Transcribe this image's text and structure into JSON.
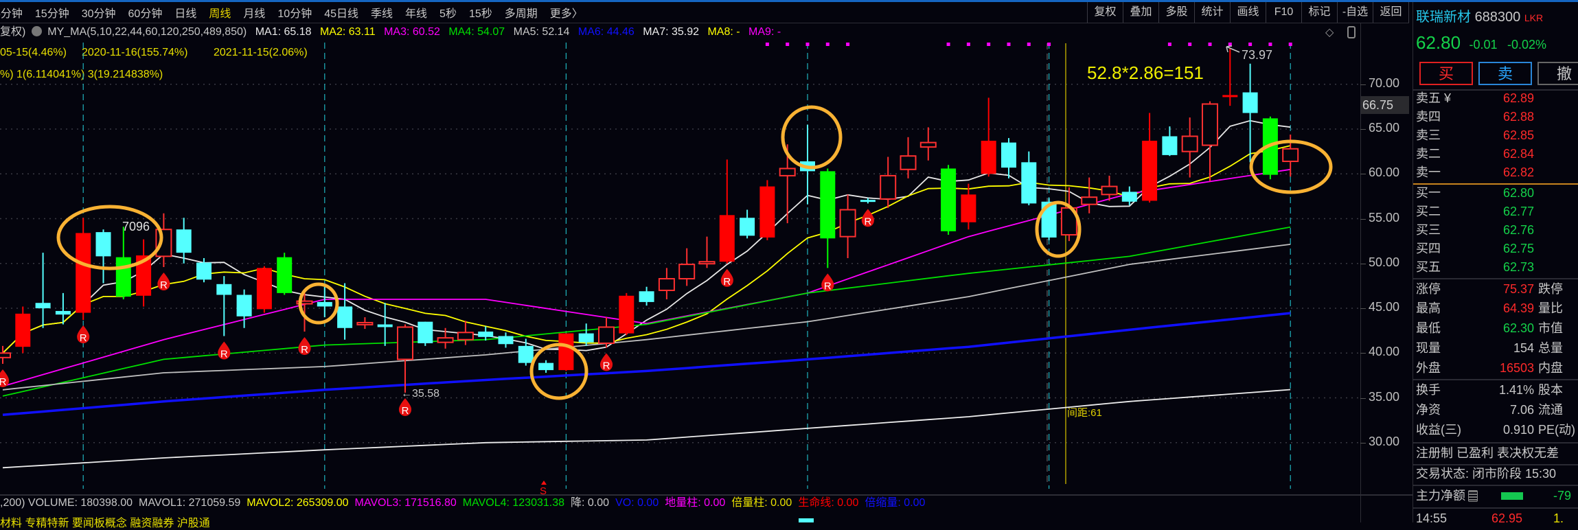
{
  "tabs": [
    "5分钟",
    "15分钟",
    "30分钟",
    "60分钟",
    "日线",
    "周线",
    "月线",
    "10分钟",
    "45日线",
    "季线",
    "年线",
    "5秒",
    "15秒",
    "多周期",
    "更多〉"
  ],
  "active_tab": "周线",
  "toolbar": [
    "复权",
    "叠加",
    "多股",
    "统计",
    "画线",
    "F10",
    "标记",
    "-自选",
    "返回"
  ],
  "ma_legend": {
    "prefix": "复权)",
    "indicator": "MY_MA(5,10,22,44,60,120,250,489,850)",
    "items": [
      {
        "label": "MA1: 65.18",
        "color": "#e8e8e8"
      },
      {
        "label": "MA2: 63.11",
        "color": "#ffff00"
      },
      {
        "label": "MA3: 60.52",
        "color": "#ff00ff"
      },
      {
        "label": "MA4: 54.07",
        "color": "#00ff00"
      },
      {
        "label": "MA5: 52.14",
        "color": "#c8c8c8"
      },
      {
        "label": "MA6: 44.46",
        "color": "#1010ff"
      },
      {
        "label": "MA7: 35.92",
        "color": "#eeeeee"
      },
      {
        "label": "MA8: -",
        "color": "#ffff00"
      },
      {
        "label": "MA9: -",
        "color": "#ff00ff"
      }
    ]
  },
  "info_line1": [
    "05-15(4.46%)",
    "2020-11-16(155.74%)",
    "2021-11-15(2.06%)"
  ],
  "info_line2": "%) 1(6.114041%) 3(19.214838%)",
  "annotations": {
    "high_label": "7096",
    "low_label": "←35.58",
    "peak_label": "73.97",
    "formula": "52.8*2.86=151",
    "spacing": "间距:61",
    "signal": "S",
    "current_price_tag": "66.75",
    "marker": "R"
  },
  "chart_data": {
    "type": "candlestick",
    "ylim": [
      24.2,
      74.7
    ],
    "y_ticks": [
      30,
      35,
      40,
      45,
      50,
      55,
      60,
      65,
      70
    ],
    "grid": true,
    "colors": {
      "up": "#ff0000",
      "down": "#54ffff",
      "big_down": "#00ff00",
      "ring": "#f9b233"
    },
    "candles": [
      [
        39.5,
        40.8,
        38.8,
        40.0,
        "rh"
      ],
      [
        40.7,
        45.2,
        40.0,
        44.4,
        "r"
      ],
      [
        45.6,
        51.2,
        42.8,
        45.0,
        "c"
      ],
      [
        44.7,
        46.7,
        43.2,
        44.3,
        "c"
      ],
      [
        44.5,
        55.1,
        43.7,
        53.4,
        "r"
      ],
      [
        53.5,
        53.8,
        47.8,
        50.8,
        "c"
      ],
      [
        50.7,
        54.1,
        46.0,
        46.3,
        "g"
      ],
      [
        46.4,
        52.7,
        45.2,
        50.9,
        "r"
      ],
      [
        50.8,
        55.6,
        49.6,
        53.8,
        "rh"
      ],
      [
        53.8,
        55.1,
        50.0,
        51.2,
        "c"
      ],
      [
        50.1,
        50.6,
        47.9,
        48.2,
        "c"
      ],
      [
        47.7,
        48.6,
        41.9,
        46.5,
        "c"
      ],
      [
        46.5,
        47.1,
        42.8,
        44.1,
        "c"
      ],
      [
        44.9,
        49.7,
        44.5,
        49.5,
        "r"
      ],
      [
        50.7,
        51.2,
        46.5,
        46.7,
        "g"
      ],
      [
        45.5,
        46.7,
        42.4,
        45.8,
        "rh"
      ],
      [
        45.7,
        47.4,
        44.0,
        45.2,
        "c"
      ],
      [
        45.2,
        47.8,
        41.5,
        42.8,
        "c"
      ],
      [
        43.2,
        44.0,
        42.7,
        43.4,
        "rh"
      ],
      [
        43.2,
        45.6,
        40.8,
        42.9,
        "c"
      ],
      [
        39.3,
        43.2,
        35.58,
        42.9,
        "rh"
      ],
      [
        43.5,
        43.5,
        40.8,
        41.1,
        "c"
      ],
      [
        41.2,
        42.8,
        40.5,
        41.7,
        "rh"
      ],
      [
        41.5,
        43.6,
        40.9,
        42.3,
        "rh"
      ],
      [
        42.4,
        43.0,
        41.4,
        41.8,
        "c"
      ],
      [
        41.9,
        42.3,
        40.6,
        41.0,
        "c"
      ],
      [
        40.8,
        41.6,
        38.6,
        38.9,
        "c"
      ],
      [
        38.9,
        39.2,
        37.8,
        38.1,
        "c"
      ],
      [
        38.1,
        42.2,
        38.0,
        42.2,
        "r"
      ],
      [
        42.2,
        43.3,
        40.8,
        41.2,
        "c"
      ],
      [
        41.1,
        44.0,
        40.6,
        42.9,
        "rh"
      ],
      [
        42.2,
        46.7,
        42.0,
        46.4,
        "r"
      ],
      [
        46.9,
        47.4,
        45.3,
        45.7,
        "c"
      ],
      [
        47.0,
        49.5,
        46.0,
        48.3,
        "rh"
      ],
      [
        48.3,
        51.7,
        47.5,
        49.9,
        "rh"
      ],
      [
        50.0,
        53.0,
        49.5,
        50.2,
        "rh"
      ],
      [
        50.2,
        61.6,
        50.0,
        55.4,
        "r"
      ],
      [
        55.1,
        56.0,
        52.8,
        53.1,
        "c"
      ],
      [
        52.9,
        59.3,
        52.6,
        58.6,
        "r"
      ],
      [
        59.8,
        63.3,
        54.5,
        60.6,
        "rh"
      ],
      [
        61.4,
        65.5,
        56.6,
        60.3,
        "c"
      ],
      [
        60.3,
        60.6,
        49.5,
        52.8,
        "g"
      ],
      [
        53.0,
        57.7,
        50.6,
        56.0,
        "rh"
      ],
      [
        57.1,
        57.3,
        56.7,
        56.9,
        "c"
      ],
      [
        57.2,
        61.9,
        56.2,
        59.8,
        "rh"
      ],
      [
        60.5,
        64.1,
        59.5,
        62.0,
        "rh"
      ],
      [
        63.0,
        65.2,
        61.5,
        63.5,
        "rh"
      ],
      [
        60.6,
        61.0,
        53.2,
        53.6,
        "g"
      ],
      [
        54.6,
        58.9,
        53.8,
        57.7,
        "r"
      ],
      [
        60.0,
        68.5,
        59.7,
        63.7,
        "r"
      ],
      [
        63.5,
        64.0,
        59.5,
        60.7,
        "c"
      ],
      [
        61.3,
        62.5,
        56.5,
        56.7,
        "c"
      ],
      [
        56.9,
        57.3,
        52.6,
        52.9,
        "c"
      ],
      [
        53.2,
        58.5,
        52.5,
        56.2,
        "rh"
      ],
      [
        56.6,
        59.6,
        55.6,
        57.4,
        "rh"
      ],
      [
        57.7,
        59.8,
        57.0,
        58.6,
        "rh"
      ],
      [
        58.0,
        58.6,
        56.5,
        56.9,
        "c"
      ],
      [
        57.0,
        66.8,
        56.8,
        63.7,
        "r"
      ],
      [
        64.2,
        65.3,
        62.0,
        62.1,
        "c"
      ],
      [
        62.5,
        66.3,
        59.6,
        64.2,
        "rh"
      ],
      [
        63.2,
        68.1,
        59.2,
        67.8,
        "rh"
      ],
      [
        68.6,
        73.97,
        67.6,
        68.8,
        "r"
      ],
      [
        69.1,
        72.3,
        61.3,
        66.8,
        "c"
      ],
      [
        66.2,
        66.4,
        59.4,
        59.9,
        "g"
      ],
      [
        61.4,
        64.39,
        59.7,
        62.8,
        "rh"
      ]
    ],
    "ma_lines": [
      {
        "name": "MA1",
        "period": 5,
        "color": "#e8e8e8"
      },
      {
        "name": "MA2",
        "period": 10,
        "color": "#ffff00"
      },
      {
        "name": "MA3",
        "color": "#ff00ff",
        "anchors": [
          36.3,
          41.5,
          46.0,
          46.0,
          43.3,
          46.7,
          53.0,
          57.8,
          60.5
        ]
      },
      {
        "name": "MA4",
        "color": "#00e000",
        "anchors": [
          35.2,
          39.3,
          40.9,
          41.5,
          43.2,
          46.7,
          48.9,
          50.8,
          54.07
        ]
      },
      {
        "name": "MA5",
        "color": "#c0c0c0",
        "anchors": [
          35.9,
          37.8,
          38.5,
          39.8,
          41.5,
          43.5,
          46.3,
          49.9,
          52.14
        ]
      },
      {
        "name": "MA6",
        "color": "#1010ff",
        "anchors": [
          33.1,
          34.6,
          35.9,
          37.0,
          38.0,
          39.3,
          40.7,
          42.6,
          44.46
        ]
      },
      {
        "name": "MA7",
        "color": "#eeeeee",
        "anchors": [
          27.2,
          28.3,
          29.2,
          30.0,
          30.3,
          31.6,
          32.9,
          34.6,
          35.92
        ]
      }
    ],
    "r_markers": [
      0,
      4,
      8,
      11,
      15,
      20,
      30,
      36,
      41,
      43
    ],
    "signal_dots": [
      38,
      39,
      40,
      41,
      42,
      47,
      48,
      49,
      50,
      51,
      52,
      58,
      59,
      60,
      61,
      62,
      63,
      64
    ],
    "period_dividers": [
      4,
      16,
      28,
      40,
      52,
      64
    ],
    "circled": [
      4,
      15,
      27,
      40,
      52,
      64
    ]
  },
  "volume_legend": [
    {
      "label": ",200) VOLUME: 180398.00",
      "color": "#c8c8c8"
    },
    {
      "label": "MAVOL1: 271059.59",
      "color": "#c8c8c8"
    },
    {
      "label": "MAVOL2: 265309.00",
      "color": "#ffff00"
    },
    {
      "label": "MAVOL3: 171516.80",
      "color": "#ff00ff"
    },
    {
      "label": "MAVOL4: 123031.38",
      "color": "#00e000"
    },
    {
      "label": "降: 0.00",
      "color": "#c8c8c8"
    },
    {
      "label": "VO: 0.00",
      "color": "#1010ff"
    },
    {
      "label": "地量柱: 0.00",
      "color": "#ff00ff"
    },
    {
      "label": "倍量柱: 0.00",
      "color": "#e8e000"
    },
    {
      "label": "生命线: 0.00",
      "color": "#ff0000"
    },
    {
      "label": "倍缩量: 0.00",
      "color": "#1010ff"
    }
  ],
  "concepts": "材料 专精特新 要闻板概念 融资融券 沪股通",
  "quote": {
    "name": "联瑞新材",
    "code": "688300",
    "tag": "LKR",
    "price": "62.80",
    "change": "-0.01",
    "change_pct": "-0.02%",
    "buy": "买",
    "sell": "卖",
    "cancel": "撤",
    "asks": [
      {
        "label": "卖五 ¥",
        "price": "62.89"
      },
      {
        "label": "卖四",
        "price": "62.88"
      },
      {
        "label": "卖三",
        "price": "62.85"
      },
      {
        "label": "卖二",
        "price": "62.84"
      },
      {
        "label": "卖一",
        "price": "62.82"
      }
    ],
    "bids": [
      {
        "label": "买一",
        "price": "62.80"
      },
      {
        "label": "买二",
        "price": "62.77"
      },
      {
        "label": "买三",
        "price": "62.76"
      },
      {
        "label": "买四",
        "price": "62.75"
      },
      {
        "label": "买五",
        "price": "62.73"
      }
    ],
    "stats": [
      {
        "label": "涨停",
        "value": "75.37",
        "label2": "跌停"
      },
      {
        "label": "最高",
        "value": "64.39",
        "label2": "量比"
      },
      {
        "label": "最低",
        "value": "62.30",
        "label2": "市值"
      },
      {
        "label": "现量",
        "value": "154",
        "label2": "总量"
      },
      {
        "label": "外盘",
        "value": "16503",
        "label2": "内盘"
      }
    ],
    "stats2": [
      {
        "label": "换手",
        "value": "1.41%",
        "label2": "股本"
      },
      {
        "label": "净资",
        "value": "7.06",
        "label2": "流通"
      },
      {
        "label": "收益(三)",
        "value": "0.910",
        "label2": "PE(动)"
      }
    ],
    "tags": "注册制 已盈利 表决权无差",
    "trade_status": "交易状态: 闭市阶段 15:30",
    "main_flow_label": "主力净额",
    "main_flow_value": "-79",
    "tick": {
      "time": "14:55",
      "price": "62.95",
      "vol": "1."
    }
  }
}
